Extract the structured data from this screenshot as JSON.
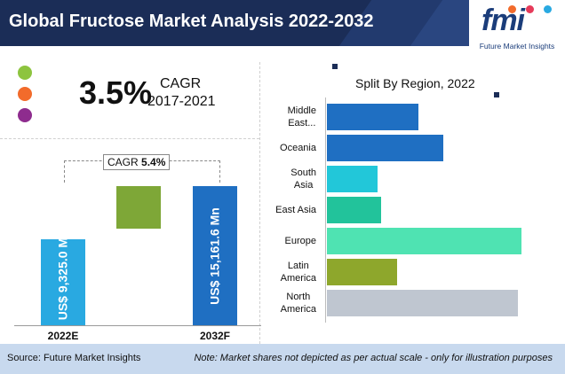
{
  "header": {
    "title": "Global Fructose Market Analysis 2022-2032"
  },
  "logo": {
    "mark": "fmi",
    "subtitle": "Future Market Insights"
  },
  "cagr_summary": {
    "value": "3.5%",
    "label": "CAGR",
    "period": "2017-2021",
    "legend_dot_colors": [
      "#8dc43f",
      "#f26b2b",
      "#8e2c8e"
    ]
  },
  "colors": {
    "header_bg": "#1b2d57",
    "bar_2022": "#29a9e1",
    "bar_increase": "#7ea737",
    "bar_2032": "#1f6fc2",
    "footer_bg": "#c8d9ee"
  },
  "chart_data": [
    {
      "type": "bar",
      "categories": [
        "2022E",
        "2032F"
      ],
      "values": [
        9325.0,
        15161.6
      ],
      "value_labels": [
        "US$ 9,325.0 Mn",
        "US$ 15,161.6 Mn"
      ],
      "annotation": {
        "label": "CAGR",
        "value": "5.4%"
      }
    },
    {
      "type": "bar",
      "orientation": "horizontal",
      "title": "Split By Region, 2022",
      "categories": [
        "Middle East...",
        "Oceania",
        "South Asia",
        "East Asia",
        "Europe",
        "Latin America",
        "North America"
      ],
      "category_lines": [
        [
          "Middle",
          "East..."
        ],
        [
          "Oceania"
        ],
        [
          "South",
          "Asia"
        ],
        [
          "East Asia"
        ],
        [
          "Europe"
        ],
        [
          "Latin",
          "America"
        ],
        [
          "North",
          "America"
        ]
      ],
      "values": [
        0.47,
        0.6,
        0.26,
        0.28,
        1.0,
        0.36,
        0.98
      ],
      "colors": [
        "#1f6fc2",
        "#1f6fc2",
        "#22c7d9",
        "#22c39b",
        "#4fe3b2",
        "#8ea72c",
        "#bfc6d0"
      ]
    }
  ],
  "footer": {
    "source": "Source: Future Market Insights",
    "note": "Note: Market shares not depicted as per actual scale - only for illustration purposes"
  }
}
